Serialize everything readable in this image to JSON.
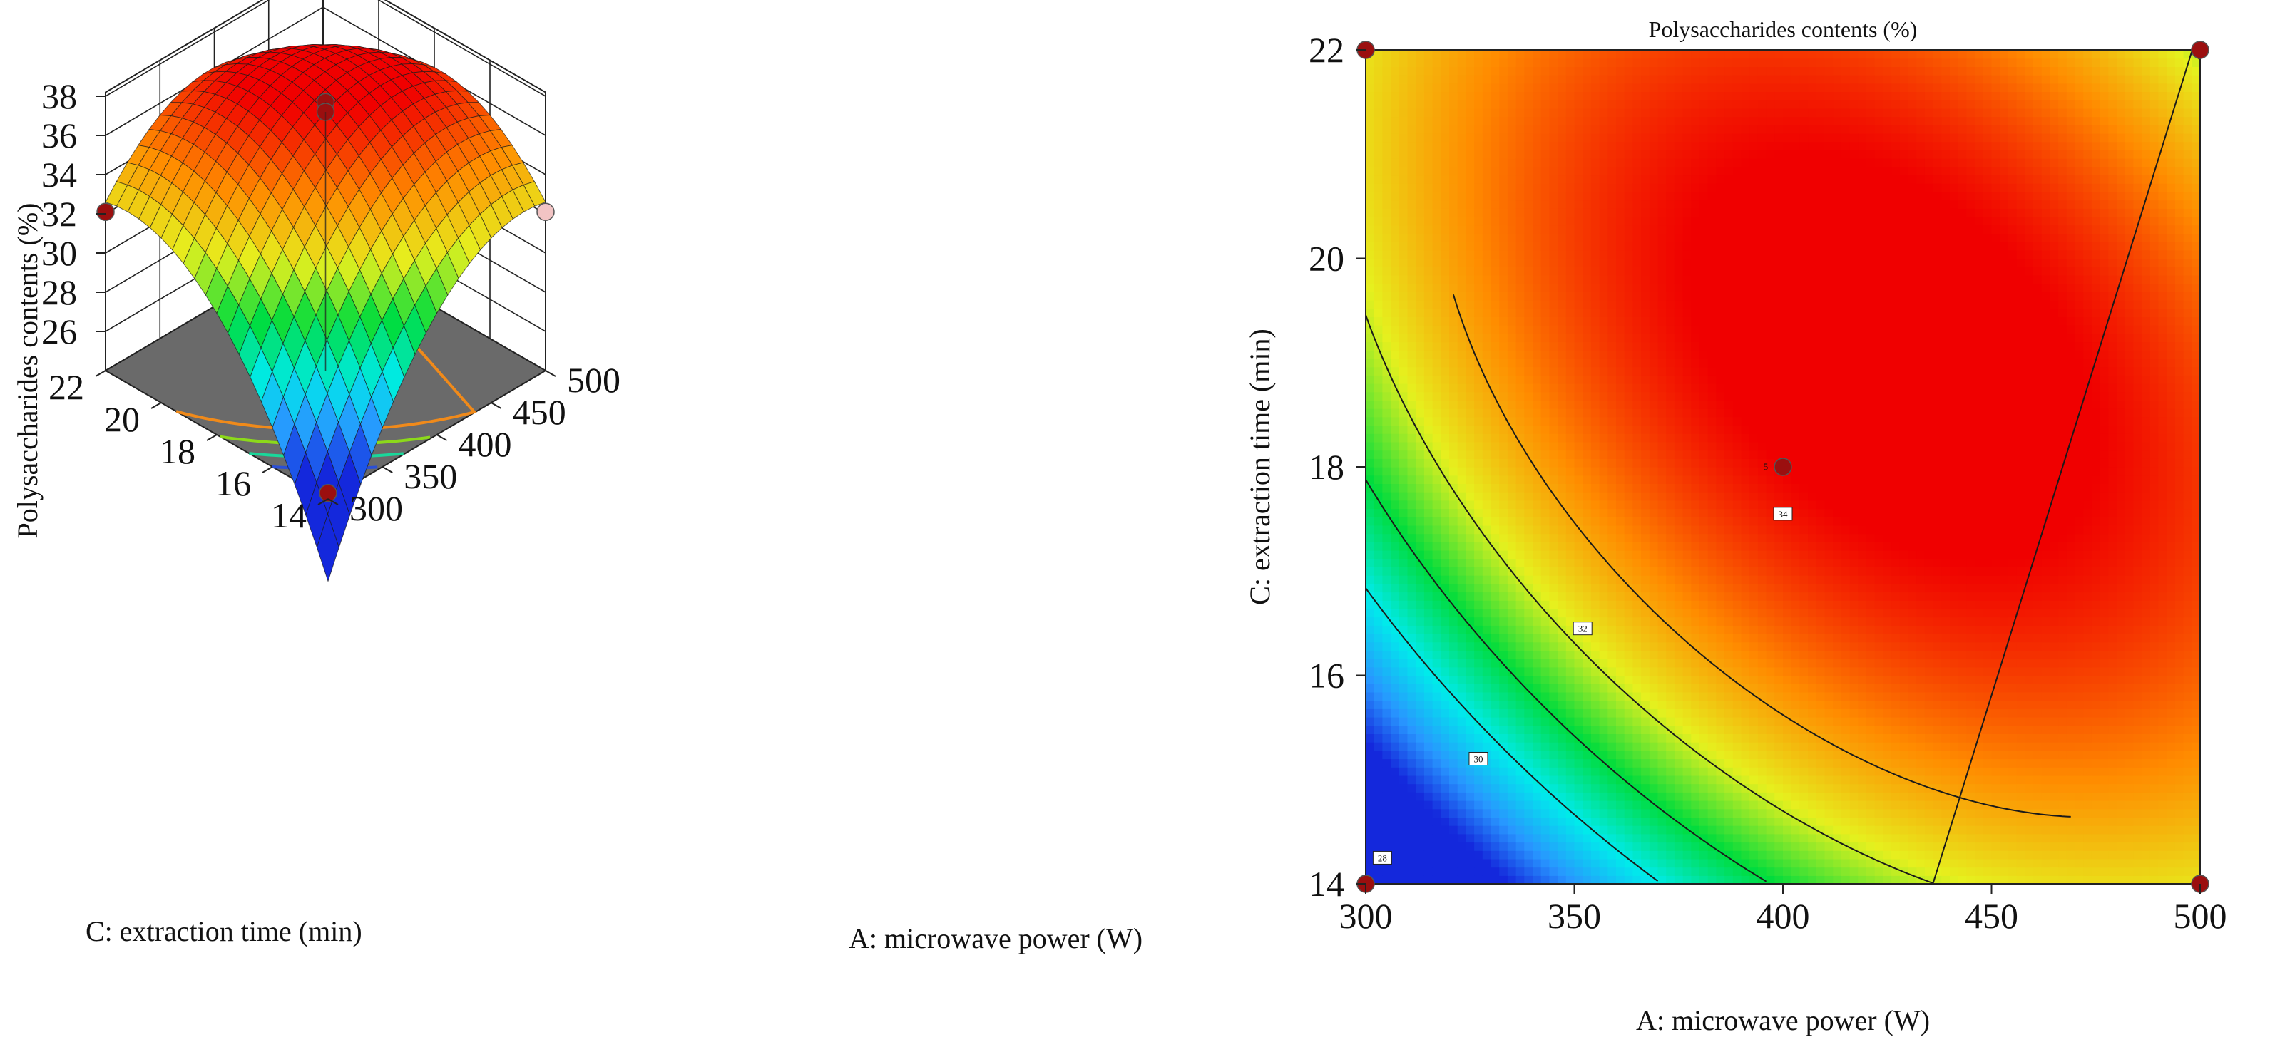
{
  "chart_data": [
    {
      "type": "surface",
      "zlabel": "Polysaccharides contents (%)",
      "xlabel": "A: microwave power (W)",
      "ylabel": "C: extraction time (min)",
      "x_ticks": [
        "300",
        "350",
        "400",
        "450",
        "500"
      ],
      "y_ticks": [
        "14",
        "16",
        "18",
        "20",
        "22"
      ],
      "z_ticks": [
        "26",
        "28",
        "30",
        "32",
        "34",
        "36",
        "38"
      ],
      "xlim": [
        300,
        500
      ],
      "ylim": [
        14,
        22
      ],
      "zlim": [
        24,
        38
      ],
      "grid_resolution": 21,
      "model": {
        "description": "quadratic response surface",
        "A_center": 400,
        "A_halfrange": 100,
        "C_center": 18,
        "C_halfrange": 4,
        "b0": 37.2,
        "bA": 3.0,
        "bC": 3.0,
        "bAA": -4.0,
        "bCC": -4.0,
        "bAC": -3.4
      },
      "floor_contour_levels": [
        26,
        28,
        30,
        32
      ],
      "floor_contour_colors": [
        "#2a4fd6",
        "#19d89a",
        "#8cd91a",
        "#f08a1a"
      ],
      "design_points": [
        {
          "A": 300,
          "C": 14,
          "value": 24.3,
          "color": "#9b0f0f"
        },
        {
          "A": 300,
          "C": 22,
          "value": 32.1,
          "color": "#9b0f0f"
        },
        {
          "A": 500,
          "C": 14,
          "value": 32.1,
          "color": "#f2c4c4"
        },
        {
          "A": 400,
          "C": 18,
          "value": 37.7,
          "color": "#9b0f0f"
        },
        {
          "A": 400,
          "C": 18,
          "value": 37.2,
          "color": "#9b0f0f"
        }
      ]
    },
    {
      "type": "contour",
      "title": "Polysaccharides contents (%)",
      "xlabel": "A: microwave power (W)",
      "ylabel": "C: extraction time (min)",
      "x_ticks": [
        "300",
        "350",
        "400",
        "450",
        "500"
      ],
      "y_ticks": [
        "14",
        "16",
        "18",
        "20",
        "22"
      ],
      "xlim": [
        300,
        500
      ],
      "ylim": [
        14,
        22
      ],
      "contour_levels": [
        28,
        30,
        32,
        34
      ],
      "contour_labels": [
        {
          "text": "28",
          "A": 304,
          "C": 14.25
        },
        {
          "text": "30",
          "A": 327,
          "C": 15.2
        },
        {
          "text": "32",
          "A": 352,
          "C": 16.45
        },
        {
          "text": "34",
          "A": 400,
          "C": 17.55
        }
      ],
      "design_points": [
        {
          "A": 300,
          "C": 14,
          "color": "#9b0f0f"
        },
        {
          "A": 300,
          "C": 22,
          "color": "#9b0f0f"
        },
        {
          "A": 500,
          "C": 14,
          "color": "#9b0f0f"
        },
        {
          "A": 500,
          "C": 22,
          "color": "#9b0f0f"
        },
        {
          "A": 400,
          "C": 18,
          "color": "#9b0f0f",
          "label": "5"
        }
      ]
    }
  ]
}
